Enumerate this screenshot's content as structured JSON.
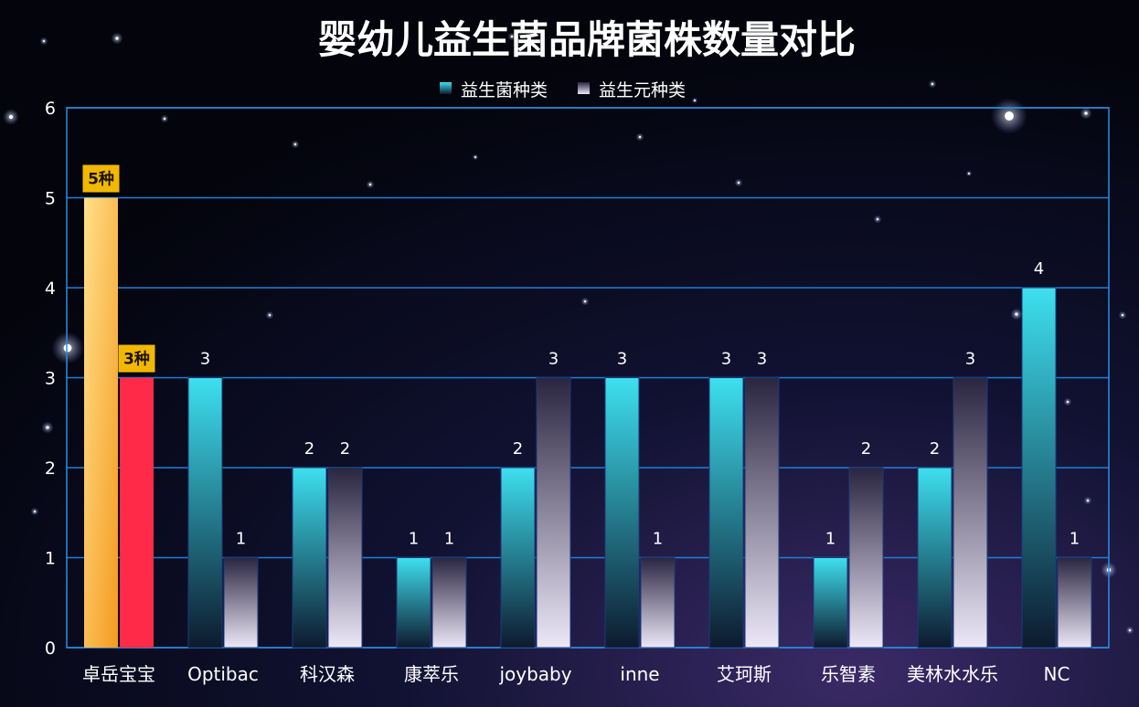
{
  "chart_data": {
    "type": "bar",
    "title": "婴幼儿益生菌品牌菌株数量对比",
    "categories": [
      "卓岳宝宝",
      "Optibac",
      "科汉森",
      "康萃乐",
      "joybaby",
      "inne",
      "艾珂斯",
      "乐智素",
      "美林水水乐",
      "NC"
    ],
    "series": [
      {
        "name": "益生菌种类",
        "values": [
          5,
          3,
          2,
          1,
          2,
          3,
          3,
          1,
          2,
          4
        ]
      },
      {
        "name": "益生元种类",
        "values": [
          3,
          1,
          2,
          1,
          3,
          1,
          3,
          2,
          3,
          1
        ]
      }
    ],
    "highlight": {
      "category": "卓岳宝宝",
      "labels": [
        "5种",
        "3种"
      ]
    },
    "ylim": [
      0,
      6
    ],
    "yticks": [
      0,
      1,
      2,
      3,
      4,
      5,
      6
    ],
    "grid": true,
    "legend_position": "top-center",
    "colors": {
      "background": "#05050f",
      "grid": "#1f7fd8",
      "frame": "#2a8fe0",
      "axis_text": "#ffffff",
      "title": "#ffffff",
      "probiotic_top": "#3de0f0",
      "probiotic_bottom": "#0d1a2e",
      "prebiotic_top": "#2a2540",
      "prebiotic_bottom": "#ede8f8",
      "highlight_probiotic_top": "#ffe08a",
      "highlight_probiotic_bottom": "#f59a20",
      "highlight_prebiotic": "#ff2a48",
      "highlight_label_bg": "#f2b800",
      "highlight_label_text": "#1a1200"
    }
  }
}
